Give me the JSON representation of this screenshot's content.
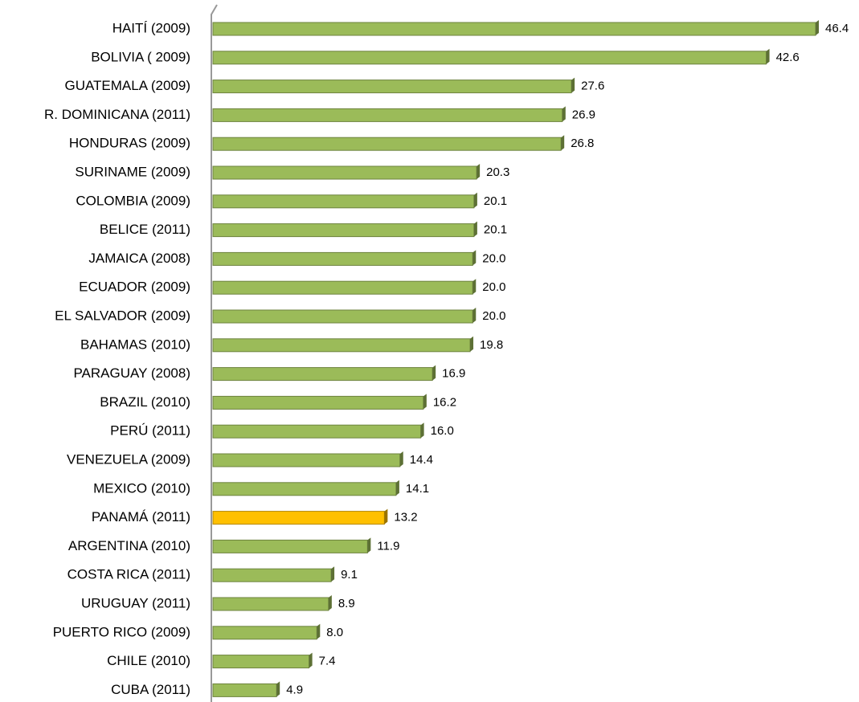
{
  "chart_data": {
    "type": "bar",
    "orientation": "horizontal",
    "categories": [
      "HAITÍ (2009)",
      "BOLIVIA ( 2009)",
      "GUATEMALA (2009)",
      "R. DOMINICANA (2011)",
      "HONDURAS (2009)",
      "SURINAME (2009)",
      "COLOMBIA (2009)",
      "BELICE (2011)",
      "JAMAICA (2008)",
      "ECUADOR (2009) ",
      "EL SALVADOR (2009)",
      "BAHAMAS (2010)",
      "PARAGUAY (2008)",
      "BRAZIL (2010)",
      "PERÚ (2011)",
      "VENEZUELA (2009)",
      "MEXICO (2010)",
      "PANAMÁ (2011)",
      "ARGENTINA (2010)",
      "COSTA RICA (2011)",
      "URUGUAY (2011)",
      "PUERTO RICO (2009)",
      "CHILE (2010)",
      "CUBA (2011)"
    ],
    "values": [
      46.4,
      42.6,
      27.6,
      26.9,
      26.8,
      20.3,
      20.1,
      20.1,
      20,
      20,
      20,
      19.8,
      16.9,
      16.2,
      16,
      14.4,
      14.1,
      13.2,
      11.9,
      9.1,
      8.9,
      8,
      7.4,
      4.9
    ],
    "value_labels": [
      "46.4",
      "42.6",
      "27.6",
      "26.9",
      "26.8",
      "20.3",
      "20.1",
      "20.1",
      "20.0",
      "20.0",
      "20.0",
      "19.8",
      "16.9",
      "16.2",
      "16.0",
      "14.4",
      "14.1",
      "13.2",
      "11.9",
      "9.1",
      "8.9",
      "8.0",
      "7.4",
      "4.9"
    ],
    "colors": [
      "#9bbb59",
      "#9bbb59",
      "#9bbb59",
      "#9bbb59",
      "#9bbb59",
      "#9bbb59",
      "#9bbb59",
      "#9bbb59",
      "#9bbb59",
      "#9bbb59",
      "#9bbb59",
      "#9bbb59",
      "#9bbb59",
      "#9bbb59",
      "#9bbb59",
      "#9bbb59",
      "#9bbb59",
      "#ffc000",
      "#9bbb59",
      "#9bbb59",
      "#9bbb59",
      "#9bbb59",
      "#9bbb59",
      "#9bbb59"
    ]
  }
}
